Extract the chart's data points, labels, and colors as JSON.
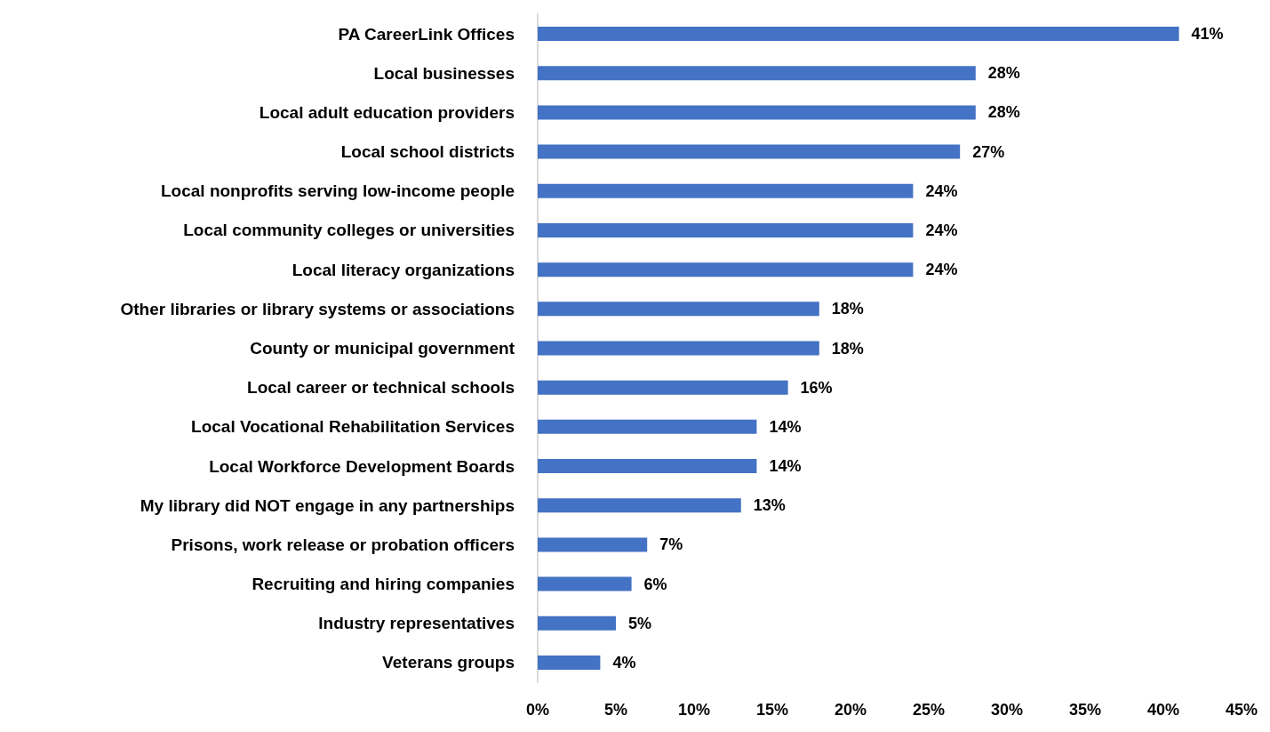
{
  "chart_data": {
    "type": "bar",
    "orientation": "horizontal",
    "categories": [
      "PA CareerLink Offices",
      "Local businesses",
      "Local adult education providers",
      "Local school districts",
      "Local nonprofits serving low-income people",
      "Local community colleges or universities",
      "Local literacy organizations",
      "Other libraries or library systems or associations",
      "County or municipal government",
      "Local career or technical schools",
      "Local Vocational Rehabilitation Services",
      "Local Workforce Development Boards",
      "My library did NOT engage in any partnerships",
      "Prisons, work release or probation officers",
      "Recruiting and hiring companies",
      "Industry representatives",
      "Veterans groups"
    ],
    "values": [
      41,
      28,
      28,
      27,
      24,
      24,
      24,
      18,
      18,
      16,
      14,
      14,
      13,
      7,
      6,
      5,
      4
    ],
    "value_labels": [
      "41%",
      "28%",
      "28%",
      "27%",
      "24%",
      "24%",
      "24%",
      "18%",
      "18%",
      "16%",
      "14%",
      "14%",
      "13%",
      "7%",
      "6%",
      "5%",
      "4%"
    ],
    "color": "#4472c4",
    "xlim": [
      0,
      45
    ],
    "xticks": [
      {
        "value": 0,
        "label": "0%"
      },
      {
        "value": 5,
        "label": "5%"
      },
      {
        "value": 10,
        "label": "10%"
      },
      {
        "value": 15,
        "label": "15%"
      },
      {
        "value": 20,
        "label": "20%"
      },
      {
        "value": 25,
        "label": "25%"
      },
      {
        "value": 30,
        "label": "30%"
      },
      {
        "value": 35,
        "label": "35%"
      },
      {
        "value": 40,
        "label": "40%"
      },
      {
        "value": 45,
        "label": "45%"
      }
    ],
    "grid": false
  }
}
